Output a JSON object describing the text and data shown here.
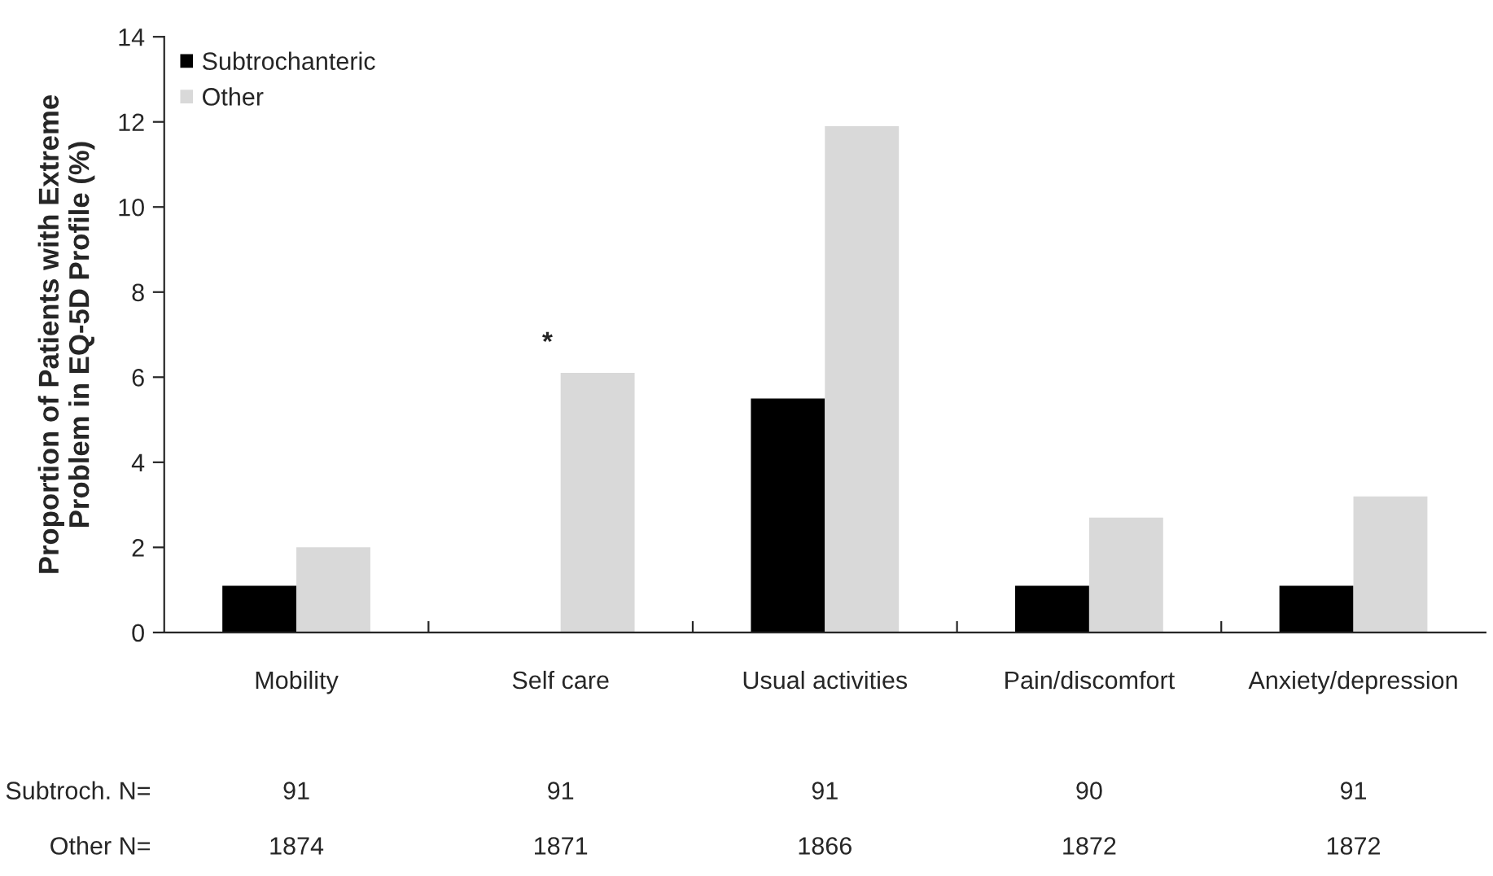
{
  "chart_data": {
    "type": "bar",
    "ylabel": "Proportion of Patients with Extreme\nProblem in EQ-5D Profile (%)",
    "categories": [
      "Mobility",
      "Self care",
      "Usual activities",
      "Pain/discomfort",
      "Anxiety/depression"
    ],
    "series": [
      {
        "name": "Subtrochanteric",
        "color": "#000000",
        "values": [
          1.1,
          0,
          5.5,
          1.1,
          1.1
        ]
      },
      {
        "name": "Other",
        "color": "#d9d9d9",
        "values": [
          2.0,
          6.1,
          11.9,
          2.7,
          3.2
        ]
      }
    ],
    "ylim": [
      0,
      14
    ],
    "yticks": [
      0,
      2,
      4,
      6,
      8,
      10,
      12,
      14
    ],
    "grid": false,
    "legend": "top left",
    "annotations": [
      "*",
      "Subtroch. N=",
      "91",
      "91",
      "91",
      "90",
      "91",
      "Other N=",
      "1874",
      "1871",
      "1866",
      "1872",
      "1872"
    ]
  }
}
